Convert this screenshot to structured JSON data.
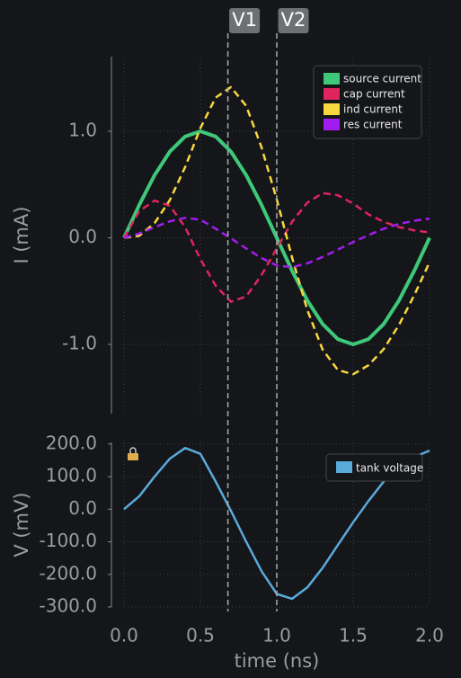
{
  "chart_data": [
    {
      "type": "line",
      "ylabel": "I (mA)",
      "x": [
        0,
        0.1,
        0.2,
        0.3,
        0.4,
        0.5,
        0.6,
        0.7,
        0.8,
        0.9,
        1.0,
        1.1,
        1.2,
        1.3,
        1.4,
        1.5,
        1.6,
        1.7,
        1.8,
        1.9,
        2.0
      ],
      "series": [
        {
          "name": "source current",
          "color": "#3ec87a",
          "linestyle": "solid",
          "values": [
            0,
            0.309,
            0.588,
            0.809,
            0.951,
            1,
            0.951,
            0.809,
            0.588,
            0.309,
            0,
            -0.309,
            -0.588,
            -0.809,
            -0.951,
            -1,
            -0.951,
            -0.809,
            -0.588,
            -0.309,
            0
          ]
        },
        {
          "name": "cap current",
          "color": "#e0245e",
          "linestyle": "dashed",
          "values": [
            0,
            0.25,
            0.35,
            0.3,
            0.1,
            -0.2,
            -0.45,
            -0.6,
            -0.55,
            -0.35,
            -0.1,
            0.15,
            0.33,
            0.42,
            0.4,
            0.32,
            0.22,
            0.15,
            0.1,
            0.07,
            0.05
          ]
        },
        {
          "name": "ind current",
          "color": "#f7d83e",
          "linestyle": "dashed",
          "values": [
            0,
            0.019,
            0.138,
            0.354,
            0.663,
            1.03,
            1.316,
            1.414,
            1.238,
            0.849,
            0.36,
            -0.184,
            -0.678,
            -1.049,
            -1.241,
            -1.28,
            -1.196,
            -1.044,
            -0.818,
            -0.539,
            -0.23
          ]
        },
        {
          "name": "res current",
          "color": "#a21cf0",
          "linestyle": "dashed",
          "values": [
            0,
            0.04,
            0.1,
            0.155,
            0.188,
            0.17,
            0.085,
            -0.005,
            -0.1,
            -0.19,
            -0.26,
            -0.275,
            -0.24,
            -0.18,
            -0.11,
            -0.04,
            0.025,
            0.085,
            0.13,
            0.16,
            0.18
          ]
        }
      ],
      "xlim": [
        0,
        2
      ],
      "xticks": [
        0,
        0.5,
        1,
        1.5,
        2
      ],
      "ylim": [
        -1.65,
        1.7
      ],
      "yticks": [
        {
          "value": -1,
          "label": "-1.0"
        },
        {
          "value": 0,
          "label": "0.0"
        },
        {
          "value": 1,
          "label": "1.0"
        }
      ],
      "grid": true,
      "legend": "upper right"
    },
    {
      "type": "line",
      "ylabel": "V (mV)",
      "xlabel": "time (ns)",
      "x": [
        0,
        0.1,
        0.2,
        0.3,
        0.4,
        0.5,
        0.6,
        0.7,
        0.8,
        0.9,
        1.0,
        1.1,
        1.2,
        1.3,
        1.4,
        1.5,
        1.6,
        1.7,
        1.8,
        1.9,
        2.0
      ],
      "series": [
        {
          "name": "tank voltage",
          "color": "#5aaadc",
          "linestyle": "solid",
          "values": [
            0,
            40,
            100,
            155,
            188,
            170,
            85,
            -5,
            -100,
            -190,
            -260,
            -275,
            -240,
            -180,
            -110,
            -40,
            25,
            85,
            130,
            160,
            180
          ]
        }
      ],
      "xlim": [
        0,
        2
      ],
      "xticks": [
        {
          "value": 0,
          "label": "0.0"
        },
        {
          "value": 0.5,
          "label": "0.5"
        },
        {
          "value": 1,
          "label": "1.0"
        },
        {
          "value": 1.5,
          "label": "1.5"
        },
        {
          "value": 2,
          "label": "2.0"
        }
      ],
      "ylim": [
        -300,
        205
      ],
      "yticks": [
        {
          "value": -300,
          "label": "-300.0"
        },
        {
          "value": -200,
          "label": "-200.0"
        },
        {
          "value": -100,
          "label": "-100.0"
        },
        {
          "value": 0,
          "label": "0.0"
        },
        {
          "value": 100,
          "label": "100.0"
        },
        {
          "value": 200,
          "label": "200.0"
        }
      ],
      "grid": true,
      "legend": "upper right"
    }
  ],
  "markers": [
    {
      "label": "V1",
      "x": 0.68
    },
    {
      "label": "V2",
      "x": 1.0
    }
  ]
}
